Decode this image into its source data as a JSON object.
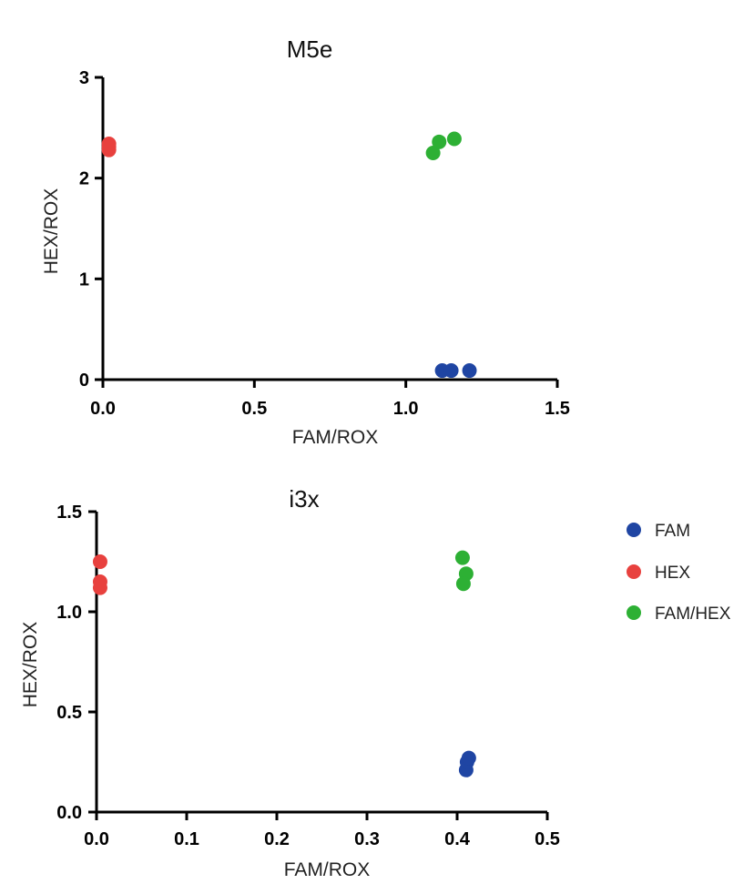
{
  "colors": {
    "FAM": "#1f45a3",
    "HEX": "#e8413e",
    "FAM/HEX": "#2db034"
  },
  "legend": [
    {
      "label": "FAM",
      "color": "#1f45a3"
    },
    {
      "label": "HEX",
      "color": "#e8413e"
    },
    {
      "label": "FAM/HEX",
      "color": "#2db034"
    }
  ],
  "chart_data": [
    {
      "type": "scatter",
      "title": "M5e",
      "xlabel": "FAM/ROX",
      "ylabel": "HEX/ROX",
      "xlim": [
        0,
        1.5
      ],
      "ylim": [
        0,
        3
      ],
      "xticks": [
        "0.0",
        "0.5",
        "1.0",
        "1.5"
      ],
      "xtick_values": [
        0,
        0.5,
        1.0,
        1.5
      ],
      "yticks": [
        "0",
        "1",
        "2",
        "3"
      ],
      "ytick_values": [
        0,
        1,
        2,
        3
      ],
      "series": [
        {
          "name": "FAM",
          "points": [
            [
              1.12,
              0.09
            ],
            [
              1.15,
              0.09
            ],
            [
              1.21,
              0.09
            ]
          ]
        },
        {
          "name": "HEX",
          "points": [
            [
              0.02,
              2.28
            ],
            [
              0.02,
              2.31
            ],
            [
              0.02,
              2.34
            ]
          ]
        },
        {
          "name": "FAM/HEX",
          "points": [
            [
              1.09,
              2.25
            ],
            [
              1.11,
              2.36
            ],
            [
              1.16,
              2.39
            ]
          ]
        }
      ]
    },
    {
      "type": "scatter",
      "title": "i3x",
      "xlabel": "FAM/ROX",
      "ylabel": "HEX/ROX",
      "xlim": [
        0,
        0.5
      ],
      "ylim": [
        0,
        1.5
      ],
      "xticks": [
        "0.0",
        "0.1",
        "0.2",
        "0.3",
        "0.4",
        "0.5"
      ],
      "xtick_values": [
        0,
        0.1,
        0.2,
        0.3,
        0.4,
        0.5
      ],
      "yticks": [
        "0.0",
        "0.5",
        "1.0",
        "1.5"
      ],
      "ytick_values": [
        0,
        0.5,
        1.0,
        1.5
      ],
      "series": [
        {
          "name": "FAM",
          "points": [
            [
              0.41,
              0.21
            ],
            [
              0.411,
              0.25
            ],
            [
              0.413,
              0.27
            ]
          ]
        },
        {
          "name": "HEX",
          "points": [
            [
              0.004,
              1.25
            ],
            [
              0.004,
              1.15
            ],
            [
              0.004,
              1.12
            ]
          ]
        },
        {
          "name": "FAM/HEX",
          "points": [
            [
              0.406,
              1.27
            ],
            [
              0.41,
              1.19
            ],
            [
              0.407,
              1.14
            ]
          ]
        }
      ]
    }
  ]
}
